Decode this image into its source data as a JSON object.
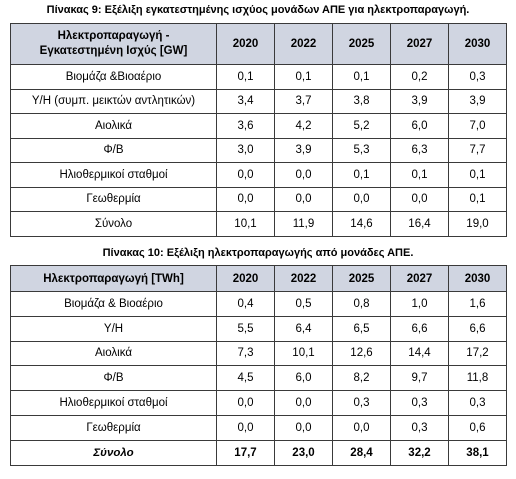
{
  "table1": {
    "caption": "Πίνακας 9: Εξέλιξη εγκατεστημένης ισχύος μονάδων ΑΠΕ για ηλεκτροπαραγωγή.",
    "header": {
      "label_line1": "Ηλεκτροπαραγωγή -",
      "label_line2": "Εγκατεστημένη Ισχύς [GW]",
      "years": [
        "2020",
        "2022",
        "2025",
        "2027",
        "2030"
      ]
    },
    "rows": [
      {
        "label": "Βιομάζα &Βιοαέριο",
        "values": [
          "0,1",
          "0,1",
          "0,1",
          "0,2",
          "0,3"
        ]
      },
      {
        "label": "Υ/Η (συμπ. μεικτών αντλητικών)",
        "values": [
          "3,4",
          "3,7",
          "3,8",
          "3,9",
          "3,9"
        ]
      },
      {
        "label": "Αιολικά",
        "values": [
          "3,6",
          "4,2",
          "5,2",
          "6,0",
          "7,0"
        ]
      },
      {
        "label": "Φ/Β",
        "values": [
          "3,0",
          "3,9",
          "5,3",
          "6,3",
          "7,7"
        ]
      },
      {
        "label": "Ηλιοθερμικοί σταθμοί",
        "values": [
          "0,0",
          "0,0",
          "0,1",
          "0,1",
          "0,1"
        ]
      },
      {
        "label": "Γεωθερμία",
        "values": [
          "0,0",
          "0,0",
          "0,0",
          "0,0",
          "0,1"
        ]
      },
      {
        "label": "Σύνολο",
        "values": [
          "10,1",
          "11,9",
          "14,6",
          "16,4",
          "19,0"
        ]
      }
    ]
  },
  "table2": {
    "caption": "Πίνακας 10: Εξέλιξη ηλεκτροπαραγωγής από μονάδες ΑΠΕ.",
    "header": {
      "label": "Ηλεκτροπαραγωγή [TWh]",
      "years": [
        "2020",
        "2022",
        "2025",
        "2027",
        "2030"
      ]
    },
    "rows": [
      {
        "label": "Βιομάζα & Βιοαέριο",
        "values": [
          "0,4",
          "0,5",
          "0,8",
          "1,0",
          "1,6"
        ]
      },
      {
        "label": "Υ/Η",
        "values": [
          "5,5",
          "6,4",
          "6,5",
          "6,6",
          "6,6"
        ]
      },
      {
        "label": "Αιολικά",
        "values": [
          "7,3",
          "10,1",
          "12,6",
          "14,4",
          "17,2"
        ]
      },
      {
        "label": "Φ/Β",
        "values": [
          "4,5",
          "6,0",
          "8,2",
          "9,7",
          "11,8"
        ]
      },
      {
        "label": "Ηλιοθερμικοί σταθμοί",
        "values": [
          "0,0",
          "0,0",
          "0,3",
          "0,3",
          "0,3"
        ]
      },
      {
        "label": "Γεωθερμία",
        "values": [
          "0,0",
          "0,0",
          "0,0",
          "0,3",
          "0,6"
        ]
      },
      {
        "label": "Σύνολο",
        "values": [
          "17,7",
          "23,0",
          "28,4",
          "32,2",
          "38,1"
        ]
      }
    ]
  }
}
